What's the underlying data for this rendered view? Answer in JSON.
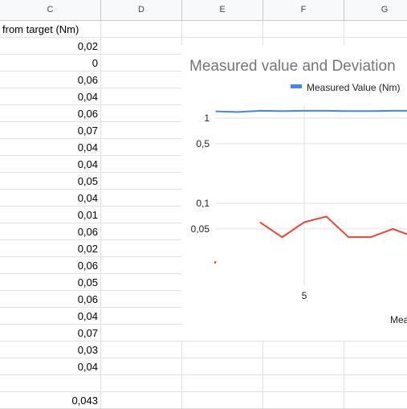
{
  "columns": [
    "C",
    "D",
    "E",
    "F",
    "G"
  ],
  "rows": [
    {
      "c": "from target (Nm)",
      "align": "left"
    },
    {
      "c": "0,02"
    },
    {
      "c": "0"
    },
    {
      "c": "0,06"
    },
    {
      "c": "0,04"
    },
    {
      "c": "0,06"
    },
    {
      "c": "0,07"
    },
    {
      "c": "0,04"
    },
    {
      "c": "0,04"
    },
    {
      "c": "0,05"
    },
    {
      "c": "0,04"
    },
    {
      "c": "0,01"
    },
    {
      "c": "0,06"
    },
    {
      "c": "0,02"
    },
    {
      "c": "0,06"
    },
    {
      "c": "0,05"
    },
    {
      "c": "0,06"
    },
    {
      "c": "0,04"
    },
    {
      "c": "0,07"
    },
    {
      "c": "0,03"
    },
    {
      "c": "0,04"
    },
    {
      "c": ""
    },
    {
      "c": "0,043"
    }
  ],
  "chart": {
    "title": "Measured value and Deviation",
    "legend_label": "Measured Value (Nm)",
    "x_tick_label": "5",
    "x_axis_label": "Mea",
    "y_tick_labels": [
      "1",
      "0,5",
      "0,1",
      "0,05"
    ]
  },
  "chart_data": {
    "type": "line",
    "title": "Measured value and Deviation",
    "y_scale": "log",
    "y_ticks": [
      1,
      0.5,
      0.1,
      0.05
    ],
    "x_ticks": [
      5
    ],
    "legend_placement": "top",
    "series": [
      {
        "name": "Measured Value (Nm)",
        "color": "#4285f4",
        "x": [
          1,
          2,
          3,
          4,
          5,
          6,
          7,
          8,
          9,
          10
        ],
        "values": [
          1.2,
          1.18,
          1.22,
          1.21,
          1.22,
          1.22,
          1.21,
          1.21,
          1.22,
          1.22
        ]
      },
      {
        "name": "",
        "color": "#ea4335",
        "x": [
          1,
          3,
          4,
          5,
          6,
          7,
          8,
          9,
          10
        ],
        "values": [
          0.02,
          0.06,
          0.04,
          0.06,
          0.07,
          0.04,
          0.04,
          0.05,
          0.04
        ]
      }
    ]
  }
}
